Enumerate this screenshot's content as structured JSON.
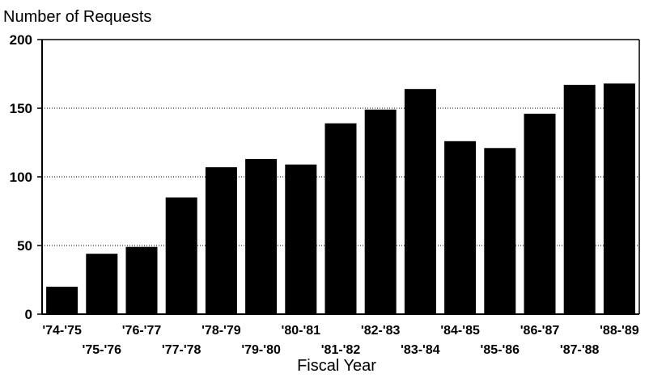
{
  "chart_data": {
    "type": "bar",
    "title": "",
    "ylabel": "Number of Requests",
    "xlabel": "Fiscal Year",
    "categories": [
      "'74-'75",
      "'75-'76",
      "'76-'77",
      "'77-'78",
      "'78-'79",
      "'79-'80",
      "'80-'81",
      "'81-'82",
      "'82-'83",
      "'83-'84",
      "'84-'85",
      "'85-'86",
      "'86-'87",
      "'87-'88",
      "'88-'89"
    ],
    "values": [
      20,
      44,
      49,
      85,
      107,
      113,
      109,
      139,
      149,
      164,
      126,
      121,
      146,
      167,
      168
    ],
    "ylim": [
      0,
      200
    ],
    "yticks": [
      "0",
      "50",
      "100",
      "150",
      "200"
    ],
    "grid": "horizontal dotted",
    "bar_color": "#000000",
    "legend": "none"
  }
}
